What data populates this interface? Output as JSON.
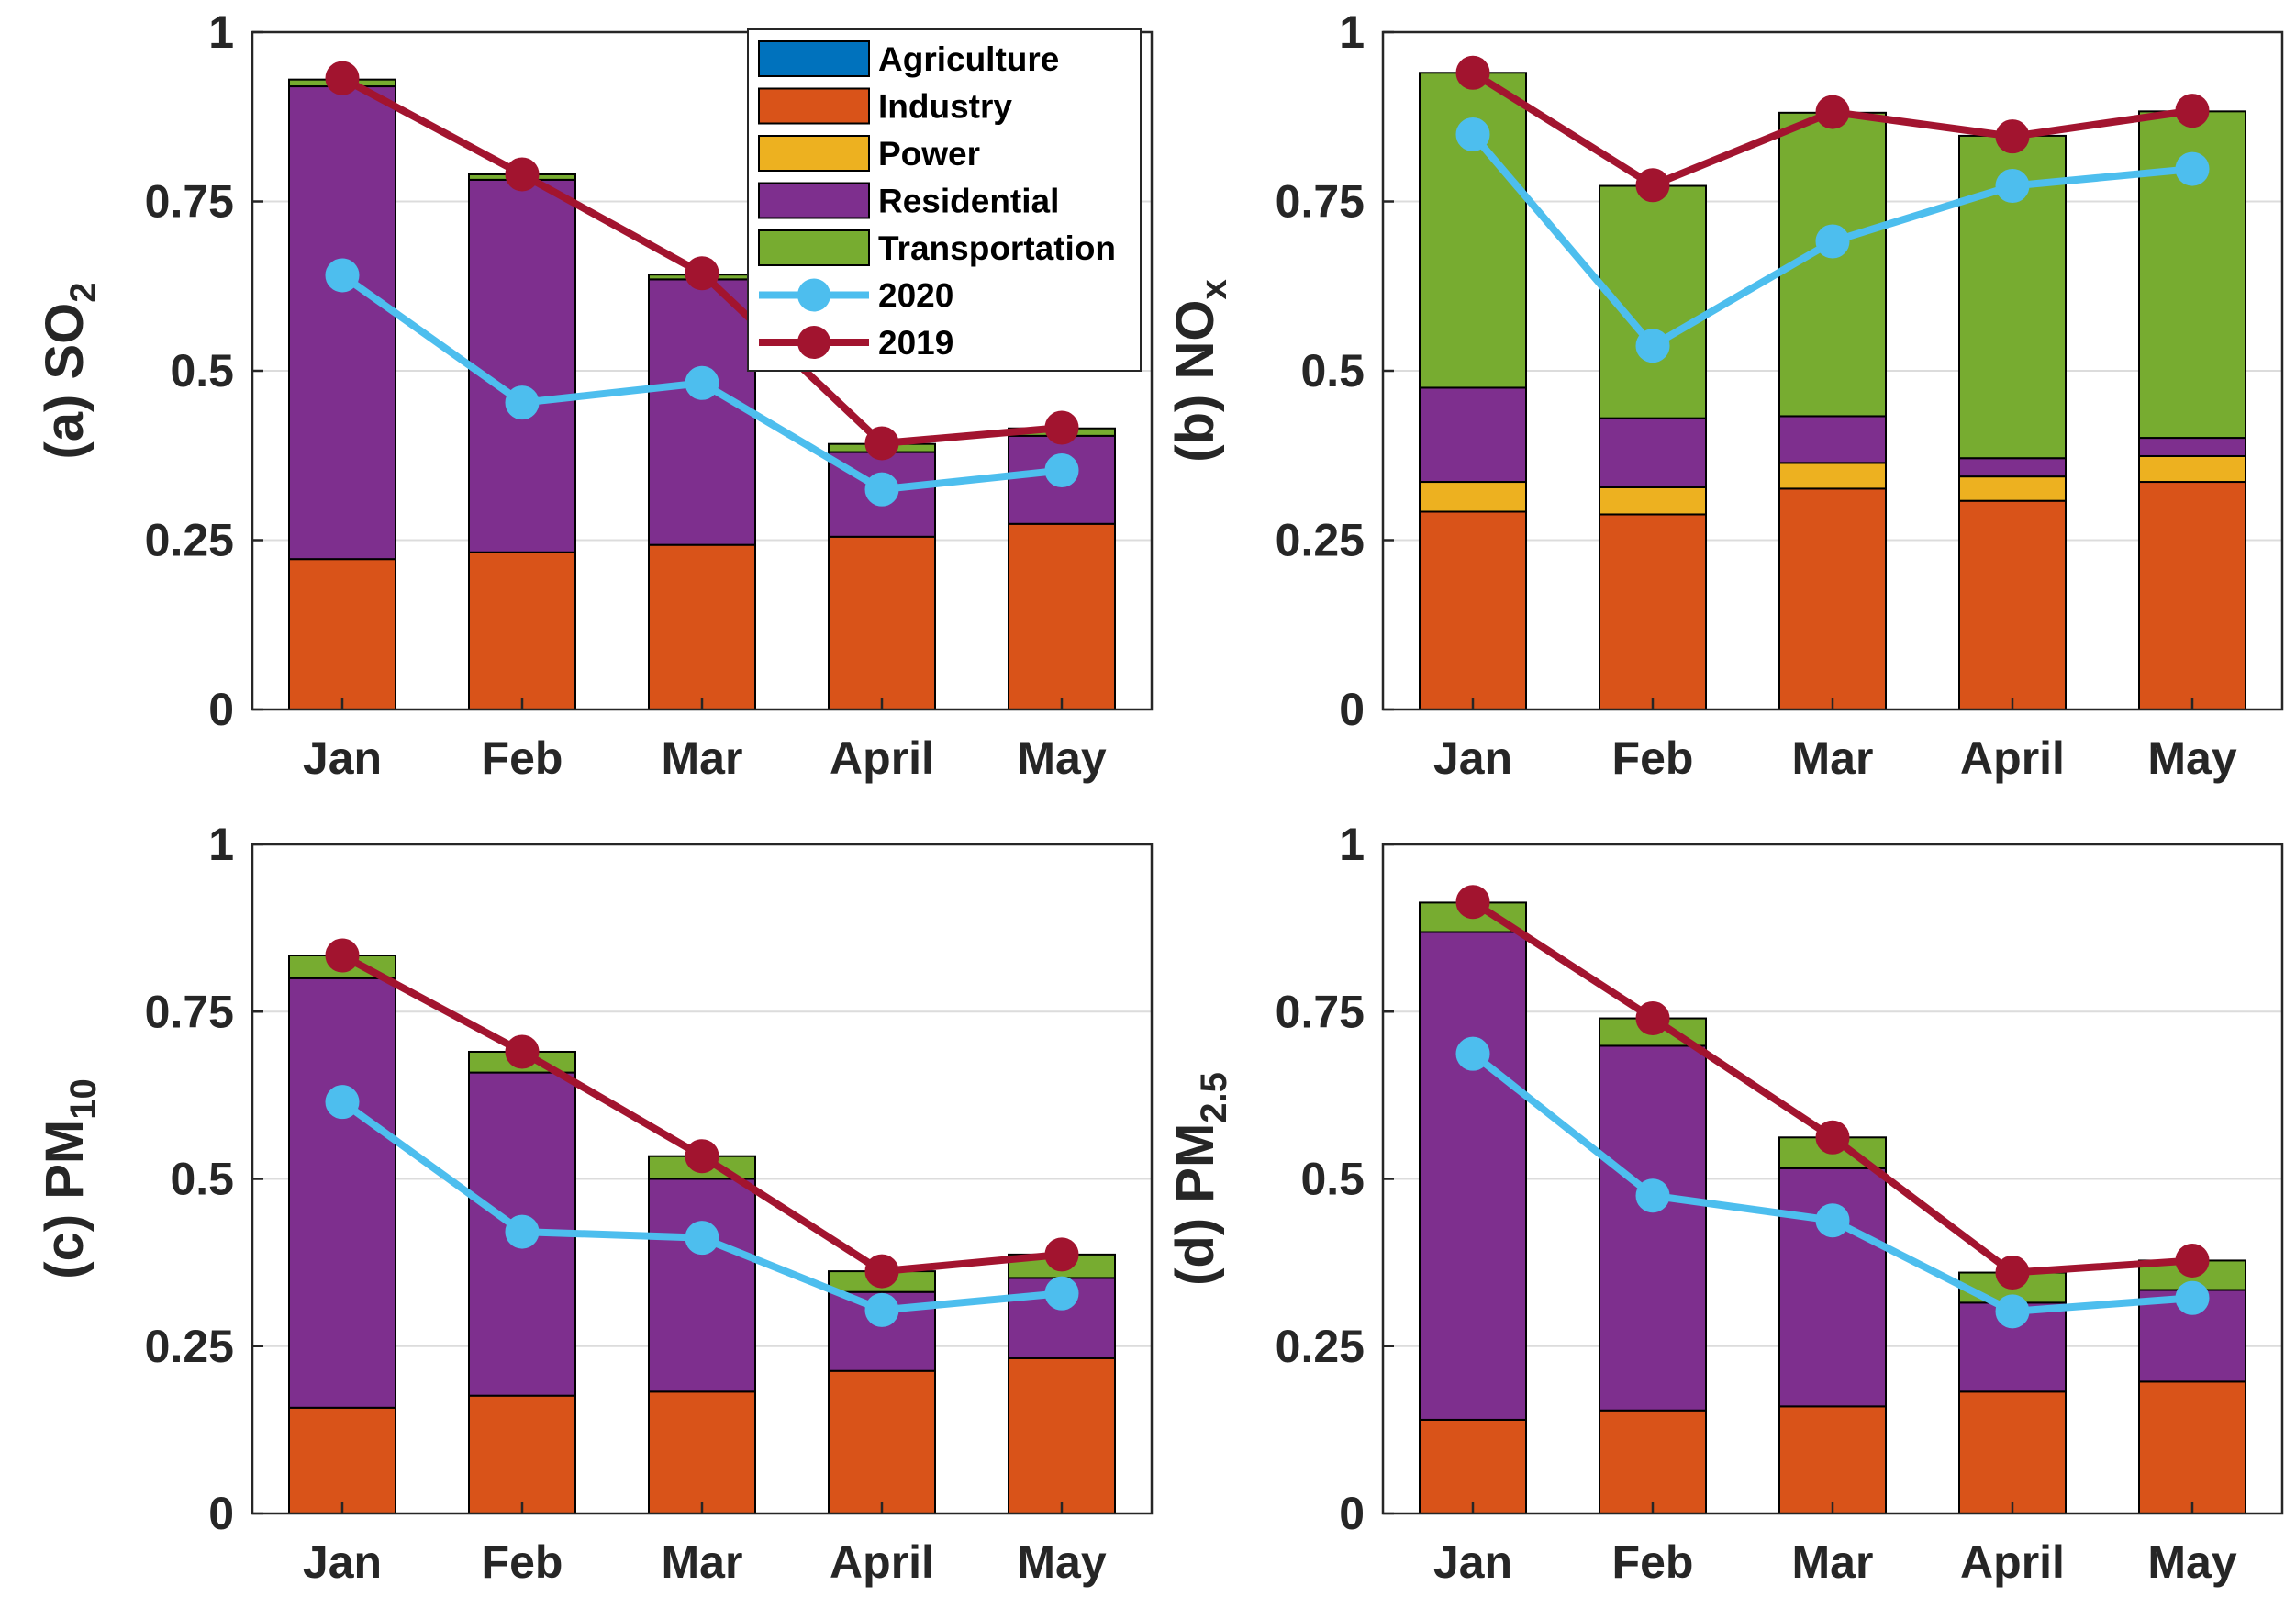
{
  "colors": {
    "Agriculture": "#0072bd",
    "Industry": "#d95319",
    "Power": "#edb120",
    "Residential": "#7e2f8e",
    "Transportation": "#77ac30",
    "2020": "#4dbeee",
    "2019": "#a2142f"
  },
  "legend": [
    {
      "label": "Agriculture",
      "kind": "patch"
    },
    {
      "label": "Industry",
      "kind": "patch"
    },
    {
      "label": "Power",
      "kind": "patch"
    },
    {
      "label": "Residential",
      "kind": "patch"
    },
    {
      "label": "Transportation",
      "kind": "patch"
    },
    {
      "label": "2020",
      "kind": "line"
    },
    {
      "label": "2019",
      "kind": "line"
    }
  ],
  "chart_data": [
    {
      "id": "a",
      "type": "bar",
      "stacked": true,
      "ylabel_prefix": "(a) SO",
      "ylabel_sub": "2",
      "categories": [
        "Jan",
        "Feb",
        "Mar",
        "April",
        "May"
      ],
      "yticks": [
        "0",
        "0.25",
        "0.5",
        "0.75",
        "1"
      ],
      "ylim": [
        0,
        1
      ],
      "grid": true,
      "legend_position": "top-right",
      "series": [
        {
          "name": "Agriculture",
          "values": [
            0,
            0,
            0,
            0,
            0
          ]
        },
        {
          "name": "Industry",
          "values": [
            0.222,
            0.232,
            0.243,
            0.255,
            0.274
          ]
        },
        {
          "name": "Power",
          "values": [
            0,
            0,
            0,
            0,
            0
          ]
        },
        {
          "name": "Residential",
          "values": [
            0.698,
            0.55,
            0.392,
            0.125,
            0.13
          ]
        },
        {
          "name": "Transportation",
          "values": [
            0.01,
            0.008,
            0.007,
            0.012,
            0.011
          ]
        }
      ],
      "lines": [
        {
          "name": "2020",
          "values": [
            0.641,
            0.453,
            0.482,
            0.325,
            0.353
          ]
        },
        {
          "name": "2019",
          "values": [
            0.932,
            0.79,
            0.644,
            0.393,
            0.416
          ]
        }
      ]
    },
    {
      "id": "b",
      "type": "bar",
      "stacked": true,
      "ylabel_prefix": "(b) NO",
      "ylabel_sub": "x",
      "categories": [
        "Jan",
        "Feb",
        "Mar",
        "April",
        "May"
      ],
      "yticks": [
        "0",
        "0.25",
        "0.5",
        "0.75",
        "1"
      ],
      "ylim": [
        0,
        1
      ],
      "grid": true,
      "series": [
        {
          "name": "Agriculture",
          "values": [
            0,
            0,
            0,
            0,
            0
          ]
        },
        {
          "name": "Industry",
          "values": [
            0.292,
            0.288,
            0.326,
            0.308,
            0.336
          ]
        },
        {
          "name": "Power",
          "values": [
            0.044,
            0.04,
            0.038,
            0.036,
            0.038
          ]
        },
        {
          "name": "Residential",
          "values": [
            0.139,
            0.102,
            0.069,
            0.027,
            0.027
          ]
        },
        {
          "name": "Transportation",
          "values": [
            0.465,
            0.343,
            0.448,
            0.476,
            0.482
          ]
        }
      ],
      "lines": [
        {
          "name": "2020",
          "values": [
            0.849,
            0.537,
            0.691,
            0.773,
            0.798
          ]
        },
        {
          "name": "2019",
          "values": [
            0.94,
            0.774,
            0.882,
            0.846,
            0.884
          ]
        }
      ]
    },
    {
      "id": "c",
      "type": "bar",
      "stacked": true,
      "ylabel_prefix": "(c) PM",
      "ylabel_sub": "10",
      "categories": [
        "Jan",
        "Feb",
        "Mar",
        "April",
        "May"
      ],
      "yticks": [
        "0",
        "0.25",
        "0.5",
        "0.75",
        "1"
      ],
      "ylim": [
        0,
        1
      ],
      "grid": true,
      "series": [
        {
          "name": "Agriculture",
          "values": [
            0,
            0,
            0,
            0,
            0
          ]
        },
        {
          "name": "Industry",
          "values": [
            0.158,
            0.176,
            0.182,
            0.213,
            0.232
          ]
        },
        {
          "name": "Power",
          "values": [
            0,
            0,
            0,
            0,
            0
          ]
        },
        {
          "name": "Residential",
          "values": [
            0.642,
            0.483,
            0.318,
            0.118,
            0.12
          ]
        },
        {
          "name": "Transportation",
          "values": [
            0.034,
            0.031,
            0.034,
            0.031,
            0.035
          ]
        }
      ],
      "lines": [
        {
          "name": "2020",
          "values": [
            0.615,
            0.421,
            0.412,
            0.304,
            0.329
          ]
        },
        {
          "name": "2019",
          "values": [
            0.834,
            0.69,
            0.534,
            0.362,
            0.387
          ]
        }
      ]
    },
    {
      "id": "d",
      "type": "bar",
      "stacked": true,
      "ylabel_prefix": "(d) PM",
      "ylabel_sub": "2.5",
      "categories": [
        "Jan",
        "Feb",
        "Mar",
        "April",
        "May"
      ],
      "yticks": [
        "0",
        "0.25",
        "0.5",
        "0.75",
        "1"
      ],
      "ylim": [
        0,
        1
      ],
      "grid": true,
      "series": [
        {
          "name": "Agriculture",
          "values": [
            0,
            0,
            0,
            0,
            0
          ]
        },
        {
          "name": "Industry",
          "values": [
            0.14,
            0.154,
            0.16,
            0.182,
            0.197
          ]
        },
        {
          "name": "Power",
          "values": [
            0,
            0,
            0,
            0,
            0
          ]
        },
        {
          "name": "Residential",
          "values": [
            0.729,
            0.545,
            0.356,
            0.133,
            0.137
          ]
        },
        {
          "name": "Transportation",
          "values": [
            0.044,
            0.041,
            0.046,
            0.045,
            0.044
          ]
        }
      ],
      "lines": [
        {
          "name": "2020",
          "values": [
            0.687,
            0.475,
            0.438,
            0.302,
            0.322
          ]
        },
        {
          "name": "2019",
          "values": [
            0.914,
            0.74,
            0.562,
            0.36,
            0.378
          ]
        }
      ]
    }
  ]
}
